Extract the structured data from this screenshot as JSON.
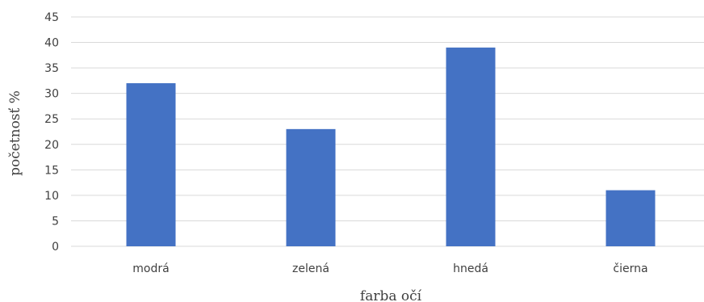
{
  "chart_data": {
    "type": "bar",
    "categories": [
      "modrá",
      "zelená",
      "hnedá",
      "čierna"
    ],
    "values": [
      32,
      23,
      39,
      11
    ],
    "xlabel": "farba očí",
    "ylabel": "početnosť %",
    "ylim": [
      0,
      45
    ],
    "yticks": [
      0,
      5,
      10,
      15,
      20,
      25,
      30,
      35,
      40,
      45
    ],
    "grid": true,
    "legend": "none",
    "colors": {
      "bar": "#4472c4",
      "grid": "#d9d9d9",
      "text": "#404040"
    }
  }
}
